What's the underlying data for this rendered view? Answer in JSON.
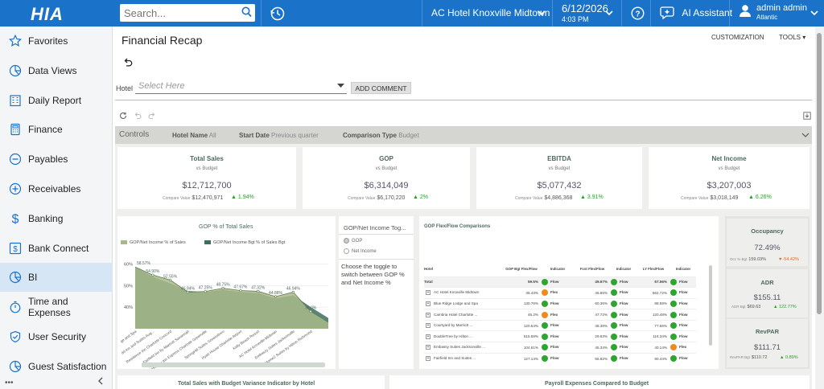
{
  "topbar": {
    "logo": "HIA",
    "search_placeholder": "Search...",
    "hotel": "AC Hotel Knoxville Midtown",
    "date": "6/12/2026",
    "time": "4:03 PM",
    "ai_label": "AI Assistant",
    "user_name": "admin admin",
    "user_region": "Atlantic"
  },
  "sidebar": {
    "items": [
      {
        "label": "Favorites",
        "icon": "star-icon"
      },
      {
        "label": "Data Views",
        "icon": "pie-chart-icon"
      },
      {
        "label": "Daily Report",
        "icon": "building-icon"
      },
      {
        "label": "Finance",
        "icon": "calculator-icon"
      },
      {
        "label": "Payables",
        "icon": "minus-circle-icon"
      },
      {
        "label": "Receivables",
        "icon": "plus-circle-icon"
      },
      {
        "label": "Banking",
        "icon": "dollar-icon"
      },
      {
        "label": "Bank Connect",
        "icon": "bank-dollar-icon"
      },
      {
        "label": "BI",
        "icon": "pie-chart-icon"
      },
      {
        "label": "Time and Expenses",
        "icon": "stopwatch-icon"
      },
      {
        "label": "User Security",
        "icon": "shield-icon"
      },
      {
        "label": "Guest Satisfaction",
        "icon": "pie-chart-icon"
      }
    ],
    "active_index": 8,
    "footer": "•••"
  },
  "page": {
    "title": "Financial Recap",
    "customization": "CUSTOMIZATION",
    "tools": "TOOLS",
    "hotel_label": "Hotel",
    "hotel_placeholder": "Select Here",
    "add_comment": "ADD COMMENT"
  },
  "controls": {
    "label": "Controls",
    "filters": [
      {
        "key": "Hotel Name",
        "value": "All"
      },
      {
        "key": "Start Date",
        "value": "Previous quarter"
      },
      {
        "key": "Comparison Type",
        "value": "Budget"
      }
    ]
  },
  "kpis": [
    {
      "title": "Total Sales",
      "sub": "vs Budget",
      "value": "$12,712,700",
      "cmp_label": "Compare Value",
      "cmp_value": "$12,470,971",
      "change": "1.94%",
      "dir": "up"
    },
    {
      "title": "GOP",
      "sub": "vs Budget",
      "value": "$6,314,049",
      "cmp_label": "Compare Value",
      "cmp_value": "$6,170,220",
      "change": "2%",
      "dir": "up"
    },
    {
      "title": "EBITDA",
      "sub": "vs Budget",
      "value": "$5,077,432",
      "cmp_label": "Compare Value",
      "cmp_value": "$4,886,368",
      "change": "3.91%",
      "dir": "up"
    },
    {
      "title": "Net Income",
      "sub": "vs Budget",
      "value": "$3,207,003",
      "cmp_label": "Compare Value",
      "cmp_value": "$3,018,149",
      "change": "6.26%",
      "dir": "up"
    }
  ],
  "gop_chart": {
    "title": "GOP % of Total Sales",
    "legend": [
      "GOP/Net Income % of Sales",
      "GOP/Net Income Bgt % of Sales Bgt"
    ],
    "colors": {
      "actual": "#a9b88a",
      "budget": "#3d6e5e"
    }
  },
  "chart_data": {
    "type": "area",
    "title": "GOP % of Total Sales",
    "categories": [
      "ge and Spa",
      "dd Inn and Suites Aug...",
      "Residence Inn Charlotte Concord",
      "Fairfield Inn by Marriott Savannah",
      "Holiday Inn Express Charlotte Greenville",
      "SpringHill Suites Greensboro",
      "Hyatt House Charlotte Airport",
      "Kelly Beach Resort",
      "AC Hotel Knoxville Midtown",
      "Embassy Suites Jacksonville",
      "Home2 Suites by Hilton Richmond",
      ""
    ],
    "series": [
      {
        "name": "GOP/Net Income % of Sales",
        "values": [
          58.57,
          54.9,
          52.55,
          46.94,
          47.25,
          48.75,
          47.67,
          47.32,
          44.88,
          46.94,
          38.0,
          33.0
        ]
      },
      {
        "name": "GOP/Net Income Bgt % of Sales Bgt",
        "values": [
          58.57,
          54.0,
          51.0,
          47.5,
          47.0,
          48.0,
          47.0,
          46.5,
          44.0,
          45.5,
          40.0,
          35.0
        ]
      }
    ],
    "point_labels": [
      "58.57%",
      "54.90%",
      "52.55%",
      "46.94%",
      "47.25%",
      "48.75%",
      "47.67%",
      "47.32%",
      "44.88%",
      "46.94%",
      "38.0%",
      ""
    ],
    "ylim": [
      30,
      62
    ],
    "yticks": [
      "60%",
      "50%",
      "40%"
    ],
    "grid": true,
    "legend_position": "top"
  },
  "toggle": {
    "title": "GOP/Net Income Tog...",
    "options": [
      "GOP",
      "Net Income"
    ],
    "selected": 0,
    "description": "Choose the toggle to switch between GOP % and Net Income %"
  },
  "flex": {
    "title": "GOP Flex/Flow Comparisons",
    "headers": [
      "Hotel",
      "GOP Bgt Flex/Flow",
      "Indicator",
      "Fcst Flex/Flow",
      "Indicator",
      "LY Flex/Flow",
      "Indicator"
    ],
    "rows": [
      {
        "hotel": "Total",
        "v1": "59.5%",
        "i1": "green",
        "t1": "Flow",
        "v2": "49.67%",
        "i2": "green",
        "t2": "Flow",
        "v3": "67.56%",
        "i3": "green",
        "t3": "Flow",
        "total": true
      },
      {
        "hotel": "AC Hotel Knoxville Midtown",
        "v1": "36.43%",
        "i1": "orange",
        "t1": "Flex",
        "v2": "45.66%",
        "i2": "green",
        "t2": "Flow",
        "v3": "562.72%",
        "i3": "green",
        "t3": "Flow"
      },
      {
        "hotel": "Blue Ridge Lodge and Spa",
        "v1": "130.76%",
        "i1": "green",
        "t1": "Flow",
        "v2": "60.36%",
        "i2": "green",
        "t2": "Flow",
        "v3": "88.59%",
        "i3": "green",
        "t3": "Flow"
      },
      {
        "hotel": "Cambria Hotel Charlotte ...",
        "v1": "46.2%",
        "i1": "orange",
        "t1": "Flex",
        "v2": "47.72%",
        "i2": "green",
        "t2": "Flow",
        "v3": "120.48%",
        "i3": "green",
        "t3": "Flow"
      },
      {
        "hotel": "Courtyard by Marriott ...",
        "v1": "120.54%",
        "i1": "green",
        "t1": "Flow",
        "v2": "48.38%",
        "i2": "green",
        "t2": "Flow",
        "v3": "77.55%",
        "i3": "green",
        "t3": "Flow"
      },
      {
        "hotel": "DoubleTree by Hilton ...",
        "v1": "515.58%",
        "i1": "green",
        "t1": "Flow",
        "v2": "29.63%",
        "i2": "green",
        "t2": "Flow",
        "v3": "116.34%",
        "i3": "green",
        "t3": "Flow"
      },
      {
        "hotel": "Embassy Suites Jacksonville ...",
        "v1": "104.61%",
        "i1": "green",
        "t1": "Flow",
        "v2": "45.34%",
        "i2": "green",
        "t2": "Flow",
        "v3": "40.14%",
        "i3": "orange",
        "t3": "Flex"
      },
      {
        "hotel": "Fairfield Inn and Suites ...",
        "v1": "127.14%",
        "i1": "green",
        "t1": "Flow",
        "v2": "56.82%",
        "i2": "green",
        "t2": "Flow",
        "v3": "90.44%",
        "i3": "green",
        "t3": "Flow"
      }
    ],
    "colors": {
      "green": "#2ea52e",
      "orange": "#f08a1c"
    }
  },
  "side_kpis": [
    {
      "title": "Occupancy",
      "value": "72.49%",
      "cmp_label": "Occ % Bgt",
      "cmp_value": "159.03%",
      "change": "-54.42%",
      "dir": "down"
    },
    {
      "title": "ADR",
      "value": "$155.11",
      "cmp_label": "ADR Bgt",
      "cmp_value": "$69.63",
      "change": "122.77%",
      "dir": "up"
    },
    {
      "title": "RevPAR",
      "value": "$111.71",
      "cmp_label": "RevPAR Bgt",
      "cmp_value": "$110.72",
      "change": "0.89%",
      "dir": "up"
    }
  ],
  "bottom": {
    "left_title": "Total Sales with Budget Variance Indicator by Hotel",
    "right_title": "Payroll Expenses Compared to Budget"
  }
}
